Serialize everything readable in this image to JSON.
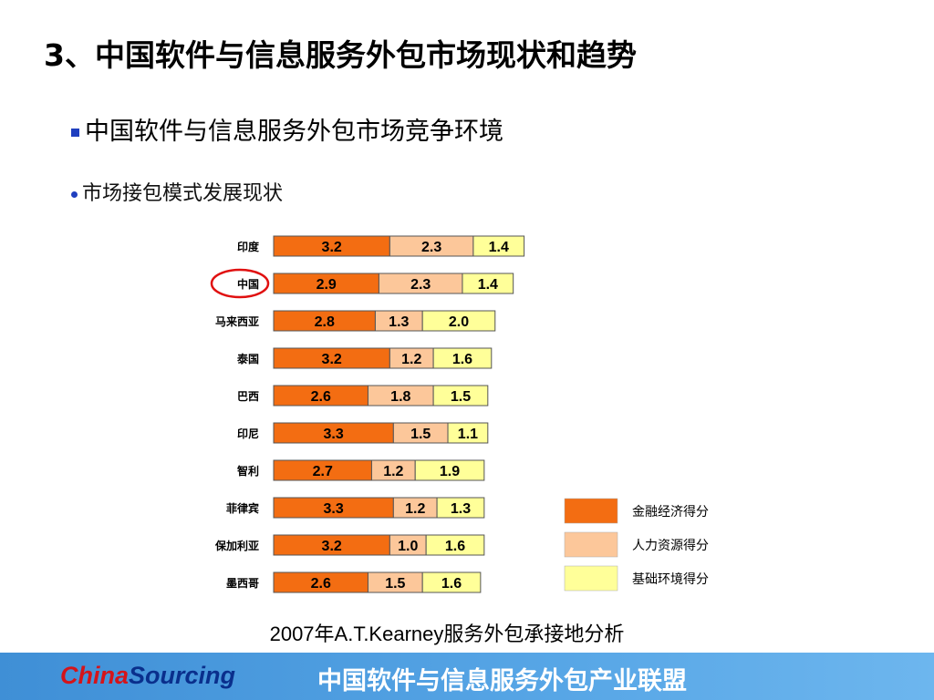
{
  "slide": {
    "title": "3、中国软件与信息服务外包市场现状和趋势",
    "bullet1": "中国软件与信息服务外包市场竞争环境",
    "bullet2": "市场接包模式发展现状",
    "caption": "2007年A.T.Kearney服务外包承接地分析"
  },
  "footer": {
    "brand_part1": "China",
    "brand_part2": "Sourcing",
    "org": "中国软件与信息服务外包产业联盟"
  },
  "chart_data": {
    "type": "bar",
    "stacked": true,
    "orientation": "horizontal",
    "categories": [
      "印度",
      "中国",
      "马来西亚",
      "泰国",
      "巴西",
      "印尼",
      "智利",
      "菲律宾",
      "保加利亚",
      "墨西哥"
    ],
    "highlighted_category": "中国",
    "series": [
      {
        "name": "金融经济得分",
        "color": "#f36d12",
        "values": [
          3.2,
          2.9,
          2.8,
          3.2,
          2.6,
          3.3,
          2.7,
          3.3,
          3.2,
          2.6
        ]
      },
      {
        "name": "人力资源得分",
        "color": "#fcc79a",
        "values": [
          2.3,
          2.3,
          1.3,
          1.2,
          1.8,
          1.5,
          1.2,
          1.2,
          1.0,
          1.5
        ]
      },
      {
        "name": "基础环境得分",
        "color": "#ffff99",
        "values": [
          1.4,
          1.4,
          2.0,
          1.6,
          1.5,
          1.1,
          1.9,
          1.3,
          1.6,
          1.6
        ]
      }
    ],
    "legend_position": "bottom-right",
    "grid": false
  }
}
